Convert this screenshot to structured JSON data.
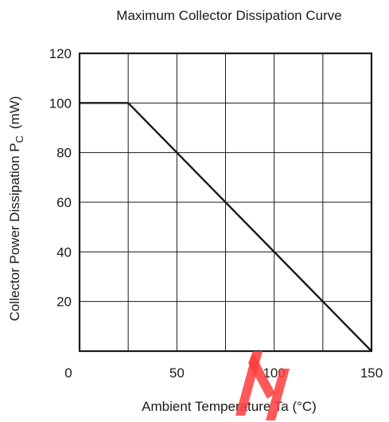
{
  "chart_data": {
    "type": "line",
    "title": "Maximum Collector Dissipation Curve",
    "xlabel": "Ambient Temperature  Ta  (°C)",
    "ylabel_main": "Collector Power Dissipation  P",
    "ylabel_subscript": "C",
    "ylabel_unit": "(mW)",
    "xlim": [
      0,
      150
    ],
    "ylim": [
      0,
      120
    ],
    "x_ticks": [
      0,
      50,
      100,
      150
    ],
    "y_ticks": [
      20,
      40,
      60,
      80,
      100,
      120
    ],
    "x_grid": [
      25,
      50,
      75,
      100,
      125
    ],
    "y_grid": [
      20,
      40,
      60,
      80,
      100
    ],
    "grid": true,
    "series": [
      {
        "x": [
          0,
          25,
          150
        ],
        "y": [
          100,
          100,
          0
        ]
      }
    ]
  },
  "watermark": {
    "color": "#ff3b3b"
  }
}
